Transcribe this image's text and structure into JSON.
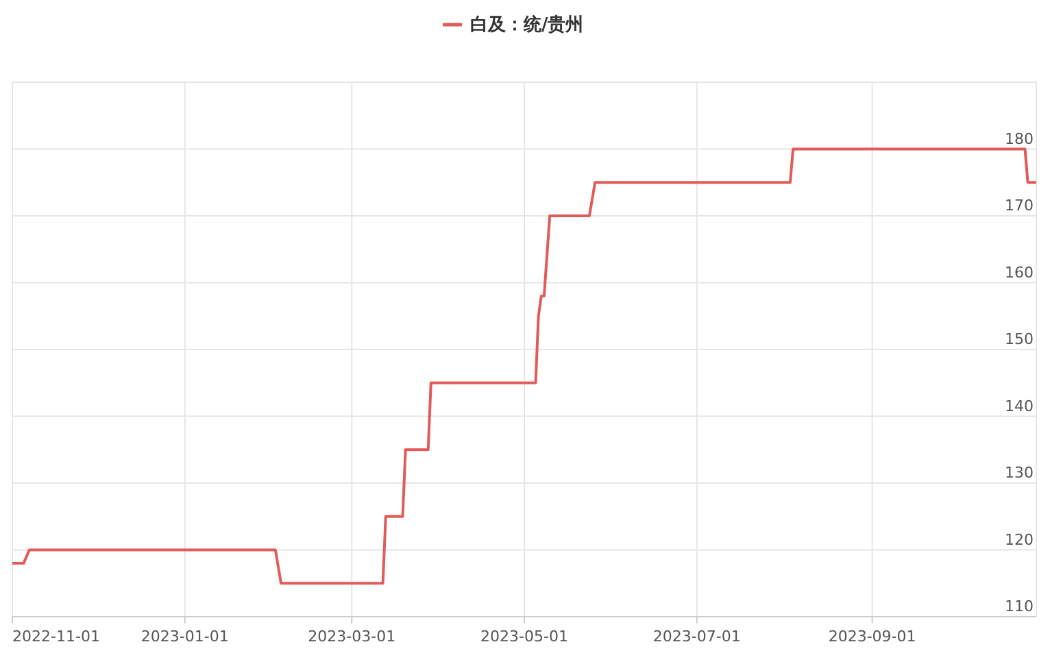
{
  "chart_data": {
    "type": "line",
    "legend": "top",
    "grid": true,
    "marker": "none",
    "line_style": "solid",
    "x": [
      "2022-11-01",
      "2022-11-05",
      "2022-11-07",
      "2023-02-02",
      "2023-02-04",
      "2023-03-12",
      "2023-03-13",
      "2023-03-19",
      "2023-03-20",
      "2023-03-28",
      "2023-03-29",
      "2023-05-05",
      "2023-05-06",
      "2023-05-07",
      "2023-05-08",
      "2023-05-10",
      "2023-05-24",
      "2023-05-26",
      "2023-08-03",
      "2023-08-04",
      "2023-10-25",
      "2023-10-26",
      "2023-10-29"
    ],
    "series": [
      {
        "name": "白及：统/贵州",
        "color": "#e25a5a",
        "values": [
          118,
          118,
          120,
          120,
          115,
          115,
          125,
          125,
          135,
          135,
          145,
          145,
          155,
          158,
          158,
          170,
          170,
          175,
          175,
          180,
          180,
          175,
          175
        ]
      }
    ],
    "xlim": [
      "2022-11-01",
      "2023-10-29"
    ],
    "xticks": [
      "2022-11-01",
      "2023-01-01",
      "2023-03-01",
      "2023-05-01",
      "2023-07-01",
      "2023-09-01"
    ],
    "ylim": [
      110,
      190
    ],
    "yticks": [
      110,
      120,
      130,
      140,
      150,
      160,
      170,
      180
    ]
  }
}
